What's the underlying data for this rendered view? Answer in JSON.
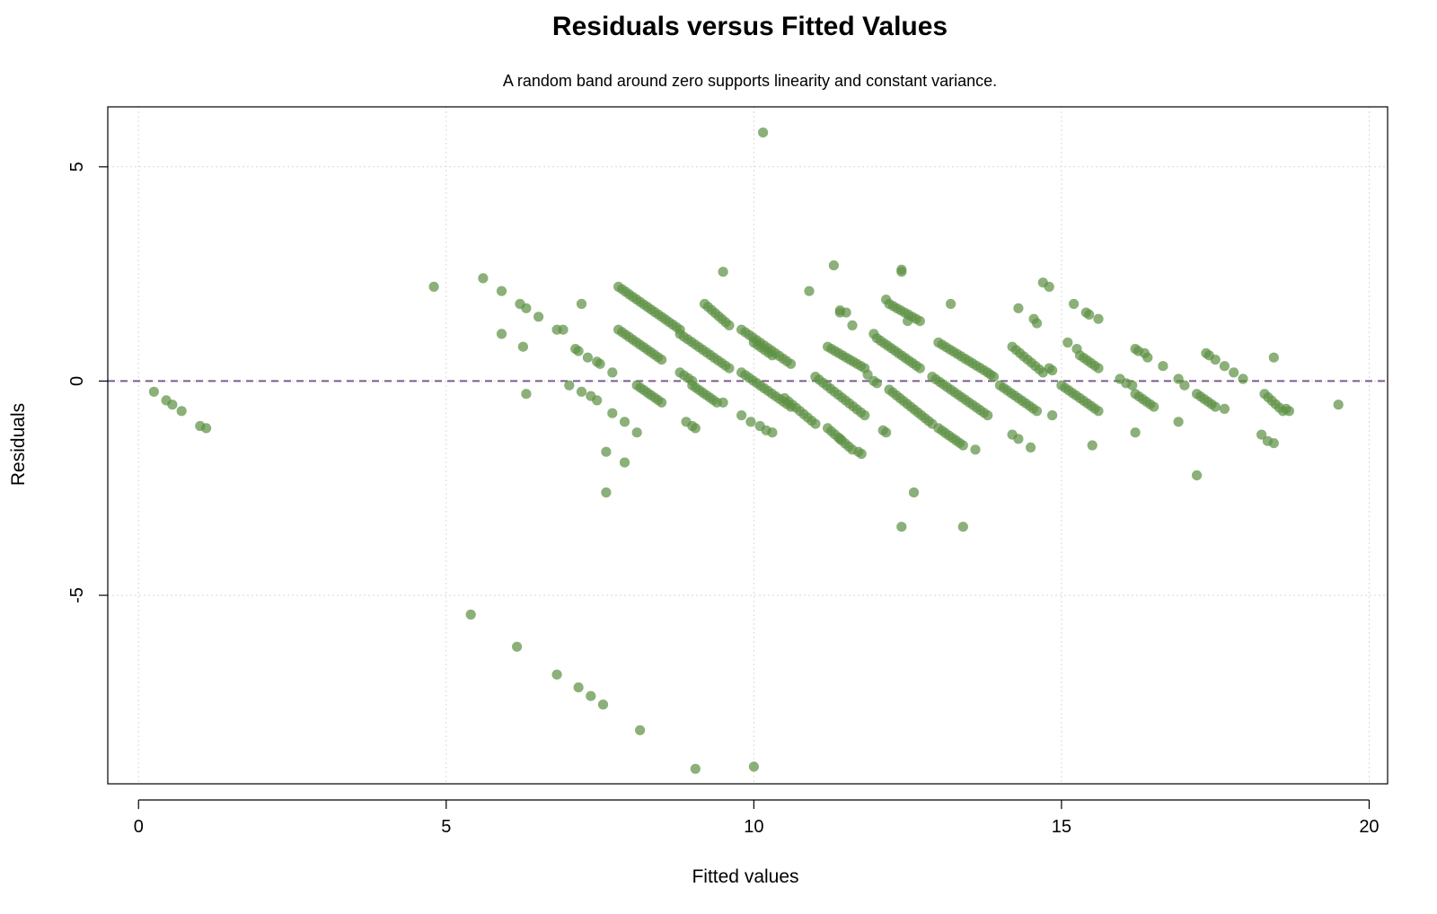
{
  "chart_data": {
    "type": "scatter",
    "title": "Residuals versus Fitted Values",
    "subtitle": "A random band around zero supports linearity and constant variance.",
    "xlabel": "Fitted values",
    "ylabel": "Residuals",
    "xlim": [
      -0.5,
      20.3
    ],
    "ylim": [
      -9.4,
      6.4
    ],
    "x_ticks": [
      0,
      5,
      10,
      15,
      20
    ],
    "x_tick_labels": [
      "0",
      "5",
      "10",
      "15",
      "20"
    ],
    "y_ticks": [
      -5,
      0,
      5
    ],
    "y_tick_labels": [
      "-5",
      "0",
      "5"
    ],
    "grid": true,
    "reference_line": {
      "y": 0,
      "style": "dashed",
      "color": "#7B5C8E"
    },
    "point_color": "#5E9145",
    "bands": [
      {
        "x0": 7.8,
        "x1": 8.5,
        "y0": 1.2,
        "y1": 0.5
      },
      {
        "x0": 8.1,
        "x1": 8.5,
        "y0": -0.1,
        "y1": -0.5
      },
      {
        "x0": 7.8,
        "x1": 8.8,
        "y0": 2.2,
        "y1": 1.2
      },
      {
        "x0": 8.8,
        "x1": 9.6,
        "y0": 1.1,
        "y1": 0.3
      },
      {
        "x0": 8.8,
        "x1": 9.0,
        "y0": 0.2,
        "y1": 0.0
      },
      {
        "x0": 9.0,
        "x1": 9.4,
        "y0": -0.1,
        "y1": -0.5
      },
      {
        "x0": 9.2,
        "x1": 9.6,
        "y0": 1.8,
        "y1": 1.3
      },
      {
        "x0": 9.8,
        "x1": 10.6,
        "y0": 1.2,
        "y1": 0.4
      },
      {
        "x0": 9.8,
        "x1": 10.6,
        "y0": 0.2,
        "y1": -0.6
      },
      {
        "x0": 10.5,
        "x1": 11.0,
        "y0": -0.4,
        "y1": -1.0
      },
      {
        "x0": 10.0,
        "x1": 10.3,
        "y0": 0.9,
        "y1": 0.6
      },
      {
        "x0": 11.0,
        "x1": 11.8,
        "y0": 0.1,
        "y1": -0.8
      },
      {
        "x0": 11.2,
        "x1": 11.8,
        "y0": 0.8,
        "y1": 0.3
      },
      {
        "x0": 11.2,
        "x1": 11.6,
        "y0": -1.1,
        "y1": -1.6
      },
      {
        "x0": 12.0,
        "x1": 12.7,
        "y0": 1.0,
        "y1": 0.3
      },
      {
        "x0": 12.2,
        "x1": 12.7,
        "y0": 1.8,
        "y1": 1.4
      },
      {
        "x0": 12.2,
        "x1": 12.9,
        "y0": -0.2,
        "y1": -1.0
      },
      {
        "x0": 13.0,
        "x1": 13.8,
        "y0": 0.9,
        "y1": 0.2
      },
      {
        "x0": 12.9,
        "x1": 13.8,
        "y0": 0.1,
        "y1": -0.8
      },
      {
        "x0": 13.0,
        "x1": 13.4,
        "y0": -1.1,
        "y1": -1.5
      },
      {
        "x0": 14.2,
        "x1": 14.7,
        "y0": 0.8,
        "y1": 0.2
      },
      {
        "x0": 14.0,
        "x1": 14.6,
        "y0": -0.1,
        "y1": -0.7
      },
      {
        "x0": 15.0,
        "x1": 15.6,
        "y0": -0.1,
        "y1": -0.7
      },
      {
        "x0": 15.3,
        "x1": 15.6,
        "y0": 0.6,
        "y1": 0.3
      },
      {
        "x0": 16.2,
        "x1": 16.5,
        "y0": -0.3,
        "y1": -0.6
      },
      {
        "x0": 17.2,
        "x1": 17.5,
        "y0": -0.3,
        "y1": -0.6
      },
      {
        "x0": 18.3,
        "x1": 18.6,
        "y0": -0.3,
        "y1": -0.7
      }
    ],
    "points": [
      [
        0.25,
        -0.25
      ],
      [
        0.45,
        -0.45
      ],
      [
        0.55,
        -0.55
      ],
      [
        0.7,
        -0.7
      ],
      [
        1.0,
        -1.05
      ],
      [
        1.1,
        -1.1
      ],
      [
        4.8,
        2.2
      ],
      [
        5.6,
        2.4
      ],
      [
        5.9,
        2.1
      ],
      [
        5.9,
        1.1
      ],
      [
        6.2,
        1.8
      ],
      [
        6.3,
        1.7
      ],
      [
        6.5,
        1.5
      ],
      [
        6.8,
        1.2
      ],
      [
        6.9,
        1.2
      ],
      [
        6.25,
        0.8
      ],
      [
        6.3,
        -0.3
      ],
      [
        7.1,
        0.75
      ],
      [
        7.15,
        0.7
      ],
      [
        7.3,
        0.55
      ],
      [
        7.45,
        0.45
      ],
      [
        7.5,
        0.4
      ],
      [
        7.7,
        0.2
      ],
      [
        7.2,
        1.8
      ],
      [
        7.0,
        -0.1
      ],
      [
        7.2,
        -0.25
      ],
      [
        7.35,
        -0.35
      ],
      [
        7.45,
        -0.45
      ],
      [
        7.7,
        -0.75
      ],
      [
        7.9,
        -0.95
      ],
      [
        8.1,
        -1.2
      ],
      [
        7.6,
        -1.65
      ],
      [
        7.9,
        -1.9
      ],
      [
        7.6,
        -2.6
      ],
      [
        9.5,
        2.55
      ],
      [
        11.3,
        2.7
      ],
      [
        10.9,
        2.1
      ],
      [
        12.4,
        2.55
      ],
      [
        12.4,
        2.6
      ],
      [
        11.4,
        1.6
      ],
      [
        11.5,
        1.6
      ],
      [
        13.2,
        1.8
      ],
      [
        14.7,
        2.3
      ],
      [
        14.8,
        2.2
      ],
      [
        14.3,
        1.7
      ],
      [
        14.55,
        1.45
      ],
      [
        14.6,
        1.35
      ],
      [
        15.2,
        1.8
      ],
      [
        15.4,
        1.6
      ],
      [
        15.45,
        1.55
      ],
      [
        15.6,
        1.45
      ],
      [
        15.1,
        0.9
      ],
      [
        15.25,
        0.75
      ],
      [
        9.5,
        -0.5
      ],
      [
        8.9,
        -0.95
      ],
      [
        9.0,
        -1.05
      ],
      [
        9.05,
        -1.1
      ],
      [
        9.8,
        -0.8
      ],
      [
        9.95,
        -0.95
      ],
      [
        10.1,
        -1.05
      ],
      [
        10.2,
        -1.15
      ],
      [
        10.3,
        -1.2
      ],
      [
        12.1,
        -1.15
      ],
      [
        12.15,
        -1.2
      ],
      [
        12.6,
        -2.6
      ],
      [
        12.4,
        -3.4
      ],
      [
        13.4,
        -3.4
      ],
      [
        13.6,
        -1.6
      ],
      [
        14.2,
        -1.25
      ],
      [
        14.3,
        -1.35
      ],
      [
        14.5,
        -1.55
      ],
      [
        15.5,
        -1.5
      ],
      [
        11.95,
        1.1
      ],
      [
        11.6,
        1.3
      ],
      [
        12.5,
        1.4
      ],
      [
        12.15,
        1.9
      ],
      [
        11.4,
        1.65
      ],
      [
        11.4,
        -1.35
      ],
      [
        11.7,
        -1.65
      ],
      [
        11.75,
        -1.7
      ],
      [
        11.85,
        0.15
      ],
      [
        11.95,
        0.0
      ],
      [
        12.0,
        -0.05
      ],
      [
        13.85,
        0.15
      ],
      [
        13.9,
        0.1
      ],
      [
        14.85,
        -0.8
      ],
      [
        14.8,
        0.3
      ],
      [
        14.85,
        0.25
      ],
      [
        15.95,
        0.05
      ],
      [
        16.05,
        -0.05
      ],
      [
        16.15,
        -0.1
      ],
      [
        16.2,
        0.75
      ],
      [
        16.25,
        0.7
      ],
      [
        16.35,
        0.65
      ],
      [
        16.4,
        0.55
      ],
      [
        16.65,
        0.35
      ],
      [
        16.2,
        -1.2
      ],
      [
        17.2,
        -2.2
      ],
      [
        16.9,
        0.05
      ],
      [
        17.0,
        -0.1
      ],
      [
        16.9,
        -0.95
      ],
      [
        17.35,
        0.65
      ],
      [
        17.4,
        0.6
      ],
      [
        17.5,
        0.5
      ],
      [
        17.65,
        0.35
      ],
      [
        17.8,
        0.2
      ],
      [
        17.95,
        0.05
      ],
      [
        17.65,
        -0.65
      ],
      [
        18.25,
        -1.25
      ],
      [
        18.35,
        -1.4
      ],
      [
        18.45,
        -1.45
      ],
      [
        18.45,
        0.55
      ],
      [
        18.65,
        -0.65
      ],
      [
        18.7,
        -0.7
      ],
      [
        19.5,
        -0.55
      ],
      [
        10.15,
        5.8
      ],
      [
        5.4,
        -5.45
      ],
      [
        6.15,
        -6.2
      ],
      [
        6.8,
        -6.85
      ],
      [
        7.15,
        -7.15
      ],
      [
        7.35,
        -7.35
      ],
      [
        7.55,
        -7.55
      ],
      [
        8.15,
        -8.15
      ],
      [
        9.05,
        -9.05
      ],
      [
        10.0,
        -9.0
      ]
    ]
  }
}
